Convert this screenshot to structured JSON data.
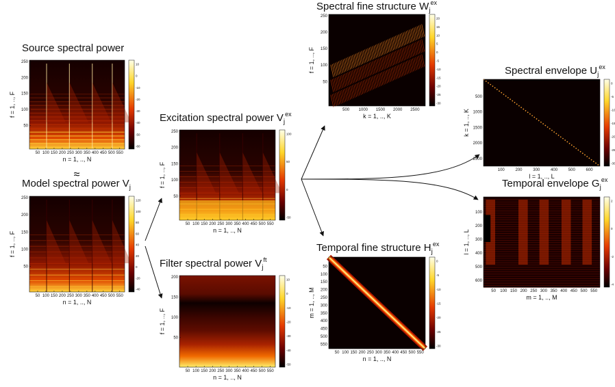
{
  "approx": "≈",
  "panels": [
    {
      "title": {
        "text": "Source spectral power",
        "sub": "",
        "sup": ""
      },
      "xlabel": "n = 1, .., N",
      "ylabel": "f = 1, .., F",
      "xticks": [
        "50",
        "100",
        "150",
        "200",
        "250",
        "300",
        "350",
        "400",
        "450",
        "500",
        "550"
      ],
      "yticks": [
        "250",
        "200",
        "150",
        "100",
        "50"
      ],
      "cbticks": [
        "10",
        "0",
        "-10",
        "-20",
        "-30",
        "-40",
        "-50",
        "-60"
      ]
    },
    {
      "title": {
        "text": "Model spectral power V",
        "sub": "j",
        "sup": ""
      },
      "xlabel": "n = 1, .., N",
      "ylabel": "f = 1, .., F",
      "xticks": [
        "50",
        "100",
        "150",
        "200",
        "250",
        "300",
        "350",
        "400",
        "450",
        "500",
        "550"
      ],
      "yticks": [
        "250",
        "200",
        "150",
        "100",
        "50"
      ],
      "cbticks": [
        "120",
        "100",
        "80",
        "60",
        "40",
        "20",
        "0",
        "-20",
        "-40"
      ]
    },
    {
      "title": {
        "text": "Excitation spectral power V",
        "sub": "j",
        "sup": "ex"
      },
      "xlabel": "n = 1, .., N",
      "ylabel": "f = 1, .., F",
      "xticks": [
        "50",
        "100",
        "150",
        "200",
        "250",
        "300",
        "350",
        "400",
        "450",
        "500",
        "550"
      ],
      "yticks": [
        "250",
        "200",
        "150",
        "100",
        "50"
      ],
      "cbticks": [
        "100",
        "50",
        "0",
        "-50"
      ]
    },
    {
      "title": {
        "text": "Filter spectral power V",
        "sub": "j",
        "sup": "ft"
      },
      "xlabel": "n = 1, .., N",
      "ylabel": "f = 1, .., F",
      "xticks": [
        "50",
        "100",
        "150",
        "200",
        "250",
        "300",
        "350",
        "400",
        "450",
        "500",
        "550"
      ],
      "yticks": [
        "200",
        "150",
        "100",
        "50"
      ],
      "cbticks": [
        "10",
        "0",
        "-10",
        "-20",
        "-30",
        "-40",
        "-50"
      ]
    },
    {
      "title": {
        "text": "Spectral fine structure W",
        "sub": "j",
        "sup": "ex"
      },
      "xlabel": "k = 1, .., K",
      "ylabel": "f = 1, .., F",
      "xticks": [
        "500",
        "1000",
        "1500",
        "2000",
        "2500"
      ],
      "yticks": [
        "250",
        "200",
        "150",
        "100",
        "50"
      ],
      "cbticks": [
        "20",
        "15",
        "10",
        "5",
        "0",
        "-5",
        "-10",
        "-15",
        "-20",
        "-25",
        "-30"
      ]
    },
    {
      "title": {
        "text": "Temporal fine structure H",
        "sub": "j",
        "sup": "ex"
      },
      "xlabel": "n = 1, .., N",
      "ylabel": "m = 1, .., M",
      "xticks": [
        "50",
        "100",
        "150",
        "200",
        "250",
        "300",
        "350",
        "400",
        "450",
        "500",
        "550"
      ],
      "yticks": [
        "50",
        "100",
        "150",
        "200",
        "250",
        "300",
        "350",
        "400",
        "450",
        "500",
        "550"
      ],
      "cbticks": [
        "0",
        "-5",
        "-10",
        "-15",
        "-20",
        "-25",
        "-30"
      ]
    },
    {
      "title": {
        "text": "Spectral envelope U",
        "sub": "j",
        "sup": "ex"
      },
      "xlabel": "l = 1, .., L",
      "ylabel": "k = 1, .., K",
      "xticks": [
        "100",
        "200",
        "300",
        "400",
        "500",
        "600"
      ],
      "yticks": [
        "500",
        "1000",
        "1500",
        "2000",
        "2500"
      ],
      "cbticks": [
        "0",
        "-5",
        "-10",
        "-15",
        "-20",
        "-25",
        "-30"
      ]
    },
    {
      "title": {
        "text": "Temporal envelope G",
        "sub": "j",
        "sup": "ex"
      },
      "xlabel": "m = 1, .., M",
      "ylabel": "l = 1, .., L",
      "xticks": [
        "50",
        "100",
        "150",
        "200",
        "250",
        "300",
        "350",
        "400",
        "450",
        "500",
        "550"
      ],
      "yticks": [
        "100",
        "200",
        "300",
        "400",
        "500",
        "600"
      ],
      "cbticks": [
        "2",
        "0",
        "-2",
        "-4"
      ]
    }
  ]
}
